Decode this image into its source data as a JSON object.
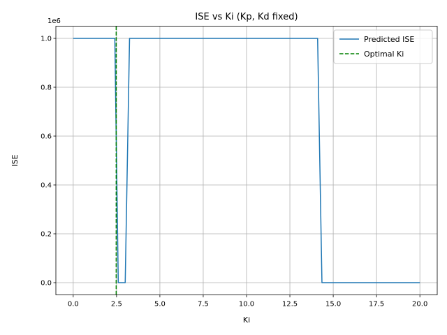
{
  "chart_data": {
    "type": "line",
    "title": "ISE vs Ki (Kp, Kd fixed)",
    "xlabel": "Ki",
    "ylabel": "ISE",
    "y_offset_label": "1e6",
    "xlim": [
      -1.0,
      21.0
    ],
    "ylim": [
      -0.05,
      1.05
    ],
    "x_ticks": [
      0.0,
      2.5,
      5.0,
      7.5,
      10.0,
      12.5,
      15.0,
      17.5,
      20.0
    ],
    "x_tick_labels": [
      "0.0",
      "2.5",
      "5.0",
      "7.5",
      "10.0",
      "12.5",
      "15.0",
      "17.5",
      "20.0"
    ],
    "y_ticks": [
      0.0,
      0.2,
      0.4,
      0.6,
      0.8,
      1.0
    ],
    "y_tick_labels": [
      "0.0",
      "0.2",
      "0.4",
      "0.6",
      "0.8",
      "1.0"
    ],
    "grid": true,
    "legend_position": "top-right",
    "series": [
      {
        "name": "Predicted ISE",
        "style": "solid",
        "color": "#1f77b4",
        "x": [
          0.0,
          2.4,
          2.6,
          3.0,
          3.25,
          14.1,
          14.35,
          20.0
        ],
        "y": [
          1.0,
          1.0,
          0.0,
          0.0,
          1.0,
          1.0,
          0.0,
          0.0
        ]
      }
    ],
    "vlines": [
      {
        "name": "Optimal Ki",
        "x": 2.48,
        "style": "dashed",
        "color": "#008000"
      }
    ]
  }
}
